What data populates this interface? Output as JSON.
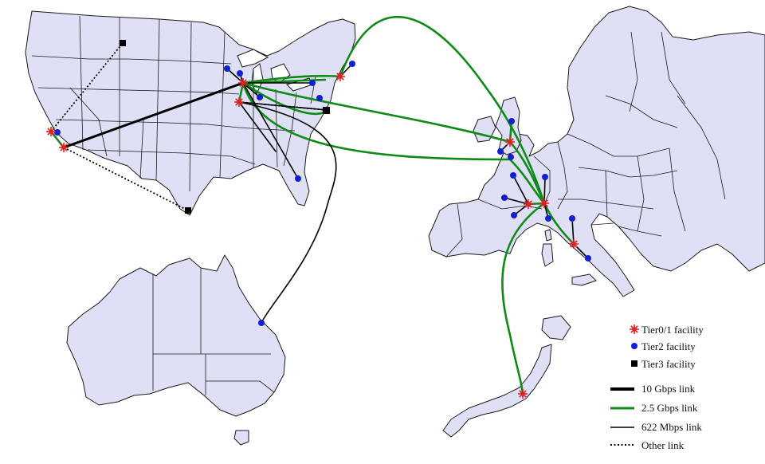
{
  "legend": {
    "tier01": "Tier0/1 facility",
    "tier2": "Tier2 facility",
    "tier3": "Tier3 facility",
    "link10g": "10 Gbps link",
    "link25g": "2.5 Gbps link",
    "link622": "622 Mbps link",
    "linkOther": "Other link"
  },
  "colors": {
    "tier01": "#e02020",
    "tier2": "#1020d0",
    "tier3": "#000000",
    "link25g": "#0e8a16",
    "land": "#dfe0f5"
  },
  "icons": {
    "tier01": "red-star-icon",
    "tier2": "blue-dot-icon",
    "tier3": "black-square-icon"
  }
}
